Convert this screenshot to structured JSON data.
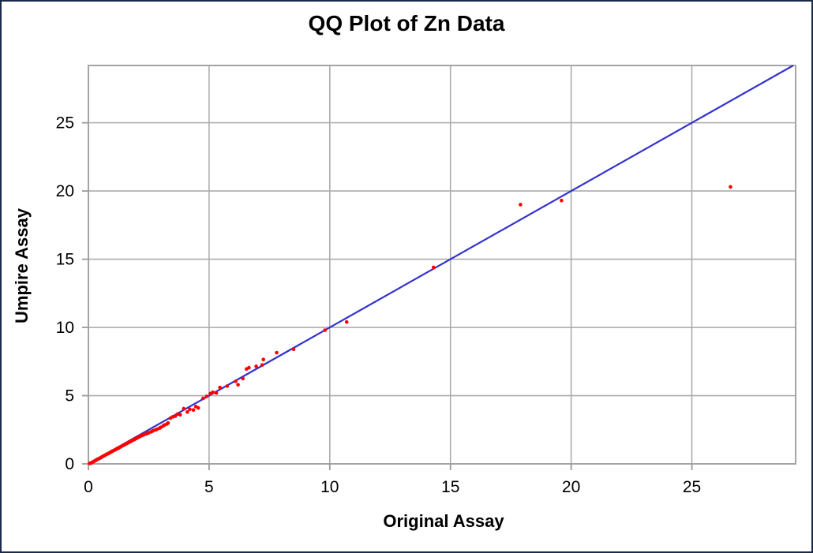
{
  "figure": {
    "border_color": "#1b2a4a",
    "background": "#ffffff"
  },
  "chart_data": {
    "type": "scatter",
    "title": "QQ Plot of Zn Data",
    "xlabel": "Original Assay",
    "ylabel": "Umpire Assay",
    "xlim": [
      0,
      29.3
    ],
    "ylim": [
      0,
      29.2
    ],
    "x_ticks": [
      0,
      5,
      10,
      15,
      20,
      25
    ],
    "y_ticks": [
      0,
      5,
      10,
      15,
      20,
      25
    ],
    "grid": true,
    "legend": false,
    "colors": {
      "points": "#ff0000",
      "line": "#3333cc",
      "grid": "#acacac",
      "axis": "#9a9a9a",
      "text": "#000000"
    },
    "series": [
      {
        "name": "identity-line",
        "type": "line",
        "color": "#3333cc",
        "points": [
          [
            0,
            0
          ],
          [
            29.2,
            29.2
          ]
        ]
      },
      {
        "name": "qq-points",
        "type": "scatter",
        "color": "#ff0000",
        "marker_radius": 2.3,
        "points": [
          [
            0.05,
            0.03
          ],
          [
            0.1,
            0.06
          ],
          [
            0.15,
            0.1
          ],
          [
            0.2,
            0.15
          ],
          [
            0.25,
            0.2
          ],
          [
            0.3,
            0.26
          ],
          [
            0.35,
            0.3
          ],
          [
            0.4,
            0.36
          ],
          [
            0.45,
            0.4
          ],
          [
            0.5,
            0.44
          ],
          [
            0.55,
            0.5
          ],
          [
            0.6,
            0.55
          ],
          [
            0.65,
            0.6
          ],
          [
            0.7,
            0.64
          ],
          [
            0.75,
            0.7
          ],
          [
            0.8,
            0.74
          ],
          [
            0.85,
            0.78
          ],
          [
            0.9,
            0.84
          ],
          [
            0.95,
            0.88
          ],
          [
            1.0,
            0.94
          ],
          [
            1.05,
            0.98
          ],
          [
            1.1,
            1.02
          ],
          [
            1.15,
            1.08
          ],
          [
            1.2,
            1.12
          ],
          [
            1.25,
            1.16
          ],
          [
            1.3,
            1.22
          ],
          [
            1.35,
            1.26
          ],
          [
            1.4,
            1.32
          ],
          [
            1.45,
            1.36
          ],
          [
            1.5,
            1.4
          ],
          [
            1.55,
            1.46
          ],
          [
            1.6,
            1.5
          ],
          [
            1.65,
            1.56
          ],
          [
            1.7,
            1.6
          ],
          [
            1.75,
            1.64
          ],
          [
            1.8,
            1.7
          ],
          [
            1.85,
            1.74
          ],
          [
            1.9,
            1.78
          ],
          [
            1.95,
            1.84
          ],
          [
            2.0,
            1.88
          ],
          [
            2.05,
            1.94
          ],
          [
            2.1,
            1.98
          ],
          [
            2.15,
            2.02
          ],
          [
            2.2,
            2.08
          ],
          [
            2.25,
            2.1
          ],
          [
            2.3,
            2.14
          ],
          [
            2.4,
            2.2
          ],
          [
            2.45,
            2.25
          ],
          [
            2.5,
            2.28
          ],
          [
            2.6,
            2.35
          ],
          [
            2.65,
            2.4
          ],
          [
            2.7,
            2.45
          ],
          [
            2.8,
            2.5
          ],
          [
            2.85,
            2.55
          ],
          [
            2.95,
            2.62
          ],
          [
            3.0,
            2.68
          ],
          [
            3.1,
            2.78
          ],
          [
            3.15,
            2.85
          ],
          [
            3.25,
            2.92
          ],
          [
            3.3,
            3.0
          ],
          [
            3.4,
            3.35
          ],
          [
            3.5,
            3.45
          ],
          [
            3.6,
            3.5
          ],
          [
            3.7,
            3.65
          ],
          [
            3.8,
            3.6
          ],
          [
            3.95,
            4.05
          ],
          [
            4.1,
            3.8
          ],
          [
            4.2,
            4.0
          ],
          [
            4.35,
            3.95
          ],
          [
            4.45,
            4.2
          ],
          [
            4.55,
            4.1
          ],
          [
            4.75,
            4.8
          ],
          [
            4.9,
            4.95
          ],
          [
            5.05,
            5.15
          ],
          [
            5.15,
            5.25
          ],
          [
            5.3,
            5.2
          ],
          [
            5.45,
            5.6
          ],
          [
            5.75,
            5.7
          ],
          [
            6.1,
            6.05
          ],
          [
            6.2,
            5.8
          ],
          [
            6.4,
            6.25
          ],
          [
            6.55,
            6.95
          ],
          [
            6.65,
            7.05
          ],
          [
            6.95,
            7.15
          ],
          [
            7.2,
            7.25
          ],
          [
            7.25,
            7.65
          ],
          [
            7.8,
            8.15
          ],
          [
            8.5,
            8.4
          ],
          [
            9.8,
            9.8
          ],
          [
            10.7,
            10.4
          ],
          [
            14.3,
            14.4
          ],
          [
            17.9,
            19.0
          ],
          [
            19.6,
            19.3
          ],
          [
            26.6,
            20.3
          ]
        ]
      }
    ]
  }
}
